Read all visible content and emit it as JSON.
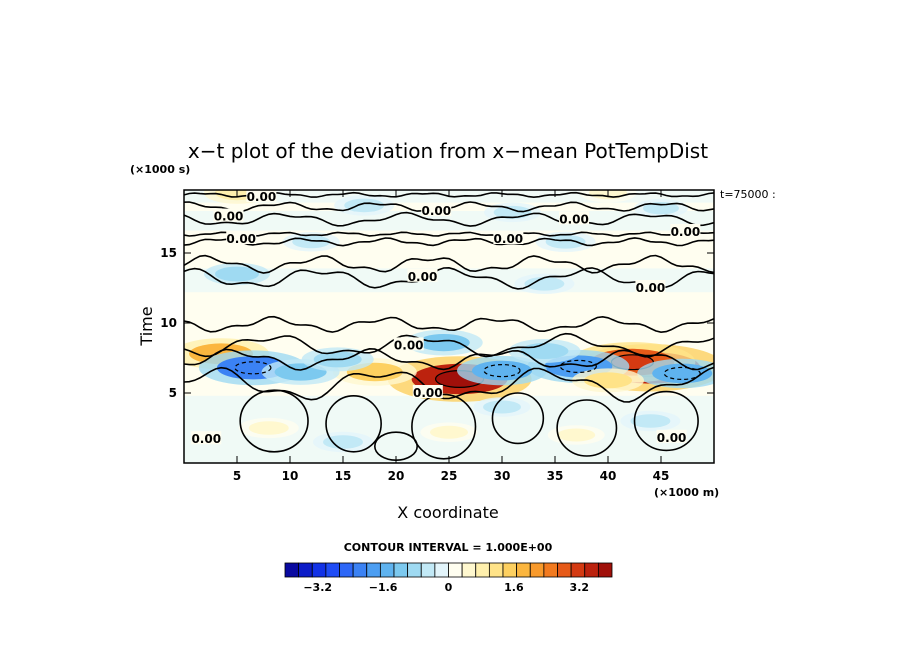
{
  "chart_data": {
    "type": "heatmap",
    "title": "x−t plot of the deviation from x−mean PotTempDist",
    "xlabel": "X coordinate",
    "ylabel": "Time",
    "x_unit": "(×1000 m)",
    "y_unit": "(×1000 s)",
    "time_note": "t=75000 :",
    "xlim": [
      0,
      50
    ],
    "ylim": [
      0,
      19.5
    ],
    "xticks": [
      5,
      10,
      15,
      20,
      25,
      30,
      35,
      40,
      45
    ],
    "yticks": [
      5,
      10,
      15
    ],
    "contour_interval_text": "CONTOUR INTERVAL = 1.000E+00",
    "contour_label": "0.00",
    "colorbar": {
      "min": -4,
      "max": 4,
      "step": 0.4,
      "tick_values": [
        -3.2,
        -1.6,
        0,
        1.6,
        3.2
      ],
      "tick_labels": [
        "−3.2",
        "−1.6",
        "0",
        "1.6",
        "3.2"
      ],
      "colors": [
        "#0a0aa0",
        "#0c1cc8",
        "#1232e6",
        "#1f4cf5",
        "#2d67f7",
        "#3b82f4",
        "#4c9ef2",
        "#5fb3ef",
        "#7cc9ef",
        "#9fdaf2",
        "#c2e9f6",
        "#e3f5fb",
        "#fffef0",
        "#fff8cf",
        "#fff0ad",
        "#ffe388",
        "#fdd060",
        "#fbb63f",
        "#f89a2c",
        "#f27a1f",
        "#e65a18",
        "#d43a12",
        "#bc220e",
        "#a0100a"
      ]
    },
    "contour_labels": [
      {
        "x": 7.3,
        "y": 19.0,
        "text": "0.00"
      },
      {
        "x": 4.2,
        "y": 17.6,
        "text": "0.00"
      },
      {
        "x": 23.8,
        "y": 18.0,
        "text": "0.00"
      },
      {
        "x": 36.8,
        "y": 17.4,
        "text": "0.00"
      },
      {
        "x": 47.3,
        "y": 16.5,
        "text": "0.00"
      },
      {
        "x": 5.4,
        "y": 16.0,
        "text": "0.00"
      },
      {
        "x": 30.6,
        "y": 16.0,
        "text": "0.00"
      },
      {
        "x": 22.5,
        "y": 13.3,
        "text": "0.00"
      },
      {
        "x": 44.0,
        "y": 12.5,
        "text": "0.00"
      },
      {
        "x": 21.2,
        "y": 8.4,
        "text": "0.00"
      },
      {
        "x": 23.0,
        "y": 5.0,
        "text": "0.00"
      },
      {
        "x": 2.1,
        "y": 1.7,
        "text": "0.00"
      },
      {
        "x": 46.0,
        "y": 1.8,
        "text": "0.00"
      }
    ],
    "anomalies": [
      {
        "x": 44.0,
        "y": 6.8,
        "value": 3.6
      },
      {
        "x": 42.3,
        "y": 7.2,
        "value": 2.8
      },
      {
        "x": 26.0,
        "y": 6.0,
        "value": 3.4
      },
      {
        "x": 18.0,
        "y": 6.5,
        "value": 1.4
      },
      {
        "x": 3.5,
        "y": 7.8,
        "value": 1.8
      },
      {
        "x": 6.5,
        "y": 6.8,
        "value": -2.2
      },
      {
        "x": 37.2,
        "y": 6.9,
        "value": -2.0
      },
      {
        "x": 30.0,
        "y": 6.6,
        "value": -1.6
      },
      {
        "x": 47.0,
        "y": 6.4,
        "value": -1.6
      },
      {
        "x": 11.0,
        "y": 6.5,
        "value": -1.2
      },
      {
        "x": 24.5,
        "y": 8.6,
        "value": -1.2
      },
      {
        "x": 14.5,
        "y": 7.4,
        "value": -1.0
      },
      {
        "x": 34.0,
        "y": 8.0,
        "value": -1.0
      },
      {
        "x": 40.0,
        "y": 5.9,
        "value": 1.0
      },
      {
        "x": 8.0,
        "y": 2.5,
        "value": 0.6
      },
      {
        "x": 25.0,
        "y": 2.2,
        "value": 0.5
      },
      {
        "x": 37.0,
        "y": 2.0,
        "value": 0.5
      },
      {
        "x": 15.0,
        "y": 1.5,
        "value": -0.6
      },
      {
        "x": 30.0,
        "y": 4.0,
        "value": -0.5
      },
      {
        "x": 44.0,
        "y": 3.0,
        "value": -0.6
      },
      {
        "x": 34.0,
        "y": 12.8,
        "value": -0.6
      },
      {
        "x": 5.0,
        "y": 13.5,
        "value": -0.8
      },
      {
        "x": 12.0,
        "y": 15.8,
        "value": -0.5
      },
      {
        "x": 36.0,
        "y": 15.8,
        "value": -0.6
      },
      {
        "x": 17.0,
        "y": 18.4,
        "value": -0.6
      },
      {
        "x": 31.0,
        "y": 17.9,
        "value": -0.5
      },
      {
        "x": 45.0,
        "y": 18.2,
        "value": -0.4
      },
      {
        "x": 5.0,
        "y": 19.3,
        "value": 0.8
      },
      {
        "x": 40.0,
        "y": 19.3,
        "value": 0.5
      }
    ]
  }
}
